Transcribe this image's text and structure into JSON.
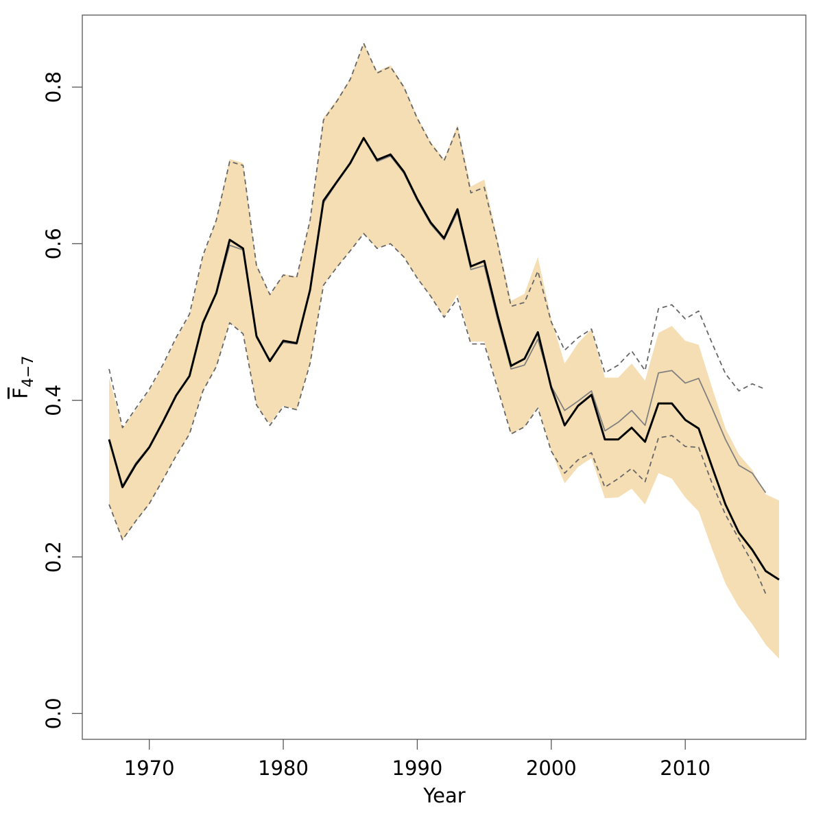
{
  "chart_data": {
    "type": "line",
    "x_label": "Year",
    "y_label": "F",
    "y_label_sub": "4−7",
    "x": [
      1967,
      1968,
      1969,
      1970,
      1971,
      1972,
      1973,
      1974,
      1975,
      1976,
      1977,
      1978,
      1979,
      1980,
      1981,
      1982,
      1983,
      1984,
      1985,
      1986,
      1987,
      1988,
      1989,
      1990,
      1991,
      1992,
      1993,
      1994,
      1995,
      1996,
      1997,
      1998,
      1999,
      2000,
      2001,
      2002,
      2003,
      2004,
      2005,
      2006,
      2007,
      2008,
      2009,
      2010,
      2011,
      2012,
      2013,
      2014,
      2015,
      2016,
      2017
    ],
    "band": {
      "color": "#f5deb3",
      "upper": [
        0.429,
        0.364,
        0.388,
        0.412,
        0.443,
        0.478,
        0.508,
        0.583,
        0.631,
        0.708,
        0.703,
        0.574,
        0.535,
        0.561,
        0.558,
        0.631,
        0.761,
        0.784,
        0.811,
        0.856,
        0.82,
        0.828,
        0.802,
        0.762,
        0.73,
        0.708,
        0.752,
        0.673,
        0.682,
        0.605,
        0.527,
        0.536,
        0.583,
        0.504,
        0.447,
        0.473,
        0.491,
        0.429,
        0.429,
        0.447,
        0.425,
        0.486,
        0.495,
        0.476,
        0.471,
        0.416,
        0.364,
        0.331,
        0.311,
        0.28,
        0.272
      ],
      "lower": [
        0.267,
        0.221,
        0.245,
        0.267,
        0.298,
        0.329,
        0.357,
        0.412,
        0.443,
        0.499,
        0.486,
        0.394,
        0.37,
        0.393,
        0.388,
        0.447,
        0.548,
        0.57,
        0.591,
        0.613,
        0.594,
        0.6,
        0.583,
        0.556,
        0.533,
        0.506,
        0.535,
        0.475,
        0.475,
        0.416,
        0.357,
        0.366,
        0.392,
        0.335,
        0.294,
        0.315,
        0.326,
        0.275,
        0.276,
        0.287,
        0.267,
        0.307,
        0.3,
        0.276,
        0.258,
        0.21,
        0.166,
        0.136,
        0.114,
        0.088,
        0.07
      ]
    },
    "series": [
      {
        "color": "#666666",
        "dashed": true,
        "width": 1.8,
        "values": [
          0.44,
          0.365,
          0.39,
          0.414,
          0.445,
          0.48,
          0.51,
          0.585,
          0.63,
          0.705,
          0.7,
          0.572,
          0.535,
          0.56,
          0.557,
          0.63,
          0.758,
          0.782,
          0.81,
          0.856,
          0.818,
          0.826,
          0.8,
          0.76,
          0.728,
          0.706,
          0.748,
          0.665,
          0.672,
          0.6,
          0.52,
          0.525,
          0.565,
          0.5,
          0.464,
          0.48,
          0.491,
          0.435,
          0.445,
          0.463,
          0.438,
          0.517,
          0.522,
          0.504,
          0.514,
          0.473,
          0.434,
          0.412,
          0.421,
          0.414,
          null
        ]
      },
      {
        "color": "#666666",
        "dashed": true,
        "width": 1.8,
        "values": [
          0.267,
          0.222,
          0.246,
          0.268,
          0.298,
          0.329,
          0.357,
          0.412,
          0.443,
          0.499,
          0.485,
          0.394,
          0.368,
          0.392,
          0.388,
          0.447,
          0.547,
          0.57,
          0.591,
          0.613,
          0.594,
          0.6,
          0.583,
          0.556,
          0.533,
          0.506,
          0.53,
          0.472,
          0.472,
          0.415,
          0.357,
          0.366,
          0.39,
          0.335,
          0.307,
          0.324,
          0.333,
          0.289,
          0.3,
          0.313,
          0.296,
          0.352,
          0.355,
          0.341,
          0.34,
          0.294,
          0.254,
          0.223,
          0.193,
          0.153,
          null
        ]
      },
      {
        "color": "#808080",
        "dashed": false,
        "width": 1.8,
        "values": [
          0.35,
          0.291,
          0.32,
          0.341,
          0.373,
          0.407,
          0.432,
          0.497,
          0.536,
          0.598,
          0.592,
          0.48,
          0.452,
          0.474,
          0.472,
          0.54,
          0.652,
          0.678,
          0.702,
          0.735,
          0.705,
          0.712,
          0.69,
          0.655,
          0.625,
          0.605,
          0.64,
          0.567,
          0.572,
          0.503,
          0.44,
          0.445,
          0.478,
          0.418,
          0.387,
          0.399,
          0.412,
          0.361,
          0.372,
          0.387,
          0.368,
          0.435,
          0.438,
          0.422,
          0.428,
          0.39,
          0.35,
          0.317,
          0.307,
          0.282,
          null
        ]
      },
      {
        "color": "#000000",
        "dashed": false,
        "width": 3,
        "values": [
          0.35,
          0.289,
          0.318,
          0.34,
          0.372,
          0.406,
          0.431,
          0.499,
          0.537,
          0.605,
          0.594,
          0.482,
          0.45,
          0.476,
          0.473,
          0.541,
          0.655,
          0.679,
          0.703,
          0.735,
          0.707,
          0.714,
          0.692,
          0.657,
          0.627,
          0.607,
          0.644,
          0.571,
          0.578,
          0.508,
          0.444,
          0.453,
          0.487,
          0.416,
          0.368,
          0.393,
          0.407,
          0.35,
          0.35,
          0.365,
          0.347,
          0.396,
          0.396,
          0.375,
          0.364,
          0.315,
          0.267,
          0.231,
          0.209,
          0.182,
          0.171
        ]
      }
    ],
    "xlim": [
      1965,
      2019
    ],
    "ylim": [
      -0.033,
      0.892
    ],
    "xticks": [
      1970,
      1980,
      1990,
      2000,
      2010
    ],
    "yticks": [
      {
        "value": 0,
        "label": "0.0"
      },
      0.2,
      0.4,
      0.6,
      0.8
    ]
  }
}
